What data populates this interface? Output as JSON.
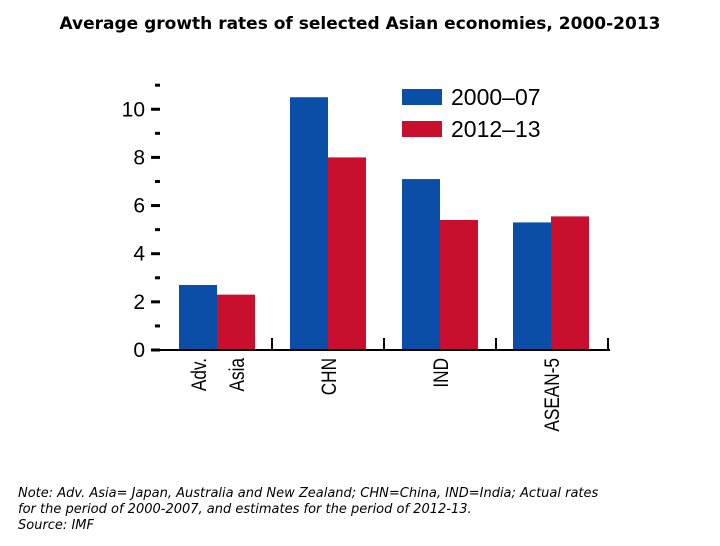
{
  "title": "Average growth rates of selected Asian economies, 2000-2013",
  "note": {
    "line1": "Note: Adv. Asia= Japan, Australia and New Zealand; CHN=China, IND=India; Actual rates",
    "line2": "for the period of 2000-2007, and estimates for the period of 2012-13.",
    "line3": "Source: IMF"
  },
  "chart_data": {
    "type": "bar",
    "title": "Average growth rates of selected Asian economies, 2000-2013",
    "xlabel": "",
    "ylabel": "",
    "ylim": [
      0,
      10.8
    ],
    "yticks": [
      0,
      2,
      4,
      6,
      8,
      10
    ],
    "categories": [
      "Adv. Asia",
      "CHN",
      "IND",
      "ASEAN-5"
    ],
    "category_label_lines": [
      [
        "Adv.",
        "Asia"
      ],
      [
        "CHN"
      ],
      [
        "IND"
      ],
      [
        "ASEAN-5"
      ]
    ],
    "series": [
      {
        "name": "2000–07",
        "color": "#0a4ea7",
        "values": [
          2.7,
          10.5,
          7.1,
          5.3
        ]
      },
      {
        "name": "2012–13",
        "color": "#c8102e",
        "values": [
          2.3,
          8.0,
          5.4,
          5.55
        ]
      }
    ],
    "grid": false,
    "legend_position": "top-right"
  }
}
